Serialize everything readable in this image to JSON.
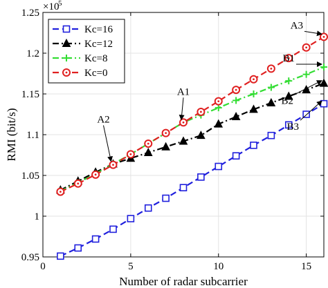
{
  "chart_data": {
    "type": "line",
    "xlabel": "Number of radar subcarrier",
    "ylabel": "RMI (bit/s)",
    "y_scale_label": "×10",
    "y_scale_exponent": "5",
    "xlim": [
      0,
      16
    ],
    "ylim": [
      0.95,
      1.25
    ],
    "x_ticks": [
      0,
      5,
      10,
      15
    ],
    "x_tick_labels": [
      "0",
      "5",
      "10",
      "15"
    ],
    "y_ticks": [
      0.95,
      1,
      1.05,
      1.1,
      1.15,
      1.2,
      1.25
    ],
    "y_tick_labels": [
      "0.95",
      "1",
      "1.05",
      "1.1",
      "1.15",
      "1.2",
      "1.25"
    ],
    "grid": true,
    "legend_position": "top-left",
    "x": [
      1,
      2,
      3,
      4,
      5,
      6,
      7,
      8,
      9,
      10,
      11,
      12,
      13,
      14,
      15,
      16
    ],
    "series": [
      {
        "name": "Kc=16",
        "color": "#1f1fdd",
        "marker": "square",
        "dash": "dashed",
        "values": [
          0.951,
          0.961,
          0.972,
          0.984,
          0.997,
          1.01,
          1.022,
          1.035,
          1.048,
          1.061,
          1.074,
          1.087,
          1.099,
          1.112,
          1.125,
          1.138
        ]
      },
      {
        "name": "Kc=12",
        "color": "#000000",
        "marker": "triangle",
        "dash": "dashdot",
        "values": [
          1.032,
          1.043,
          1.054,
          1.064,
          1.071,
          1.078,
          1.085,
          1.092,
          1.099,
          1.113,
          1.122,
          1.131,
          1.139,
          1.147,
          1.155,
          1.163
        ]
      },
      {
        "name": "Kc=8",
        "color": "#33dd33",
        "marker": "plus",
        "dash": "dashdot",
        "values": [
          1.031,
          1.041,
          1.052,
          1.064,
          1.076,
          1.089,
          1.102,
          1.115,
          1.124,
          1.133,
          1.142,
          1.15,
          1.158,
          1.166,
          1.174,
          1.183
        ]
      },
      {
        "name": "Kc=0",
        "color": "#e02020",
        "marker": "circle",
        "dash": "dashed",
        "values": [
          1.03,
          1.04,
          1.051,
          1.063,
          1.076,
          1.089,
          1.102,
          1.115,
          1.128,
          1.141,
          1.155,
          1.168,
          1.181,
          1.194,
          1.207,
          1.22
        ]
      }
    ],
    "annotations": [
      {
        "text": "A1",
        "x": 8,
        "y": 1.115
      },
      {
        "text": "A2",
        "x": 4,
        "y": 1.064
      },
      {
        "text": "A3",
        "x": 16,
        "y": 1.22
      },
      {
        "text": "B1",
        "x": 16,
        "y": 1.183
      },
      {
        "text": "B2",
        "x": 16,
        "y": 1.163
      },
      {
        "text": "B3",
        "x": 16,
        "y": 1.138
      }
    ]
  }
}
